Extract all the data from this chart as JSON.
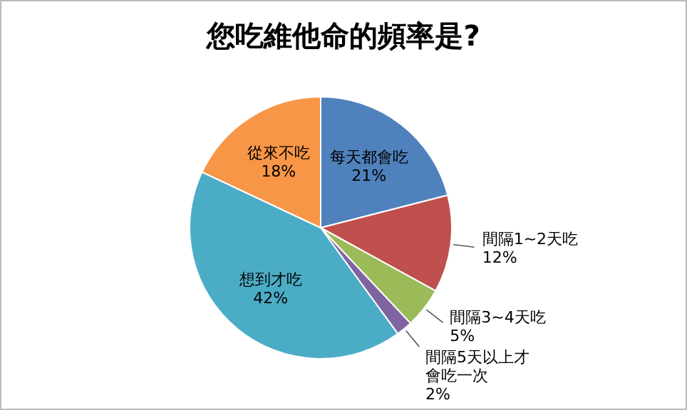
{
  "chart_data": {
    "type": "pie",
    "title": "您吃維他命的頻率是?",
    "categories": [
      "每天都會吃",
      "間隔1~2天吃",
      "間隔3~4天吃",
      "間隔5天以上才會吃一次",
      "想到才吃",
      "從來不吃"
    ],
    "values": [
      21,
      12,
      5,
      2,
      42,
      18
    ],
    "colors": [
      "#4f81bd",
      "#c0504d",
      "#9bbb59",
      "#8064a2",
      "#4bacc6",
      "#f79646"
    ],
    "value_labels": [
      "21%",
      "12%",
      "5%",
      "2%",
      "42%",
      "18%"
    ]
  }
}
